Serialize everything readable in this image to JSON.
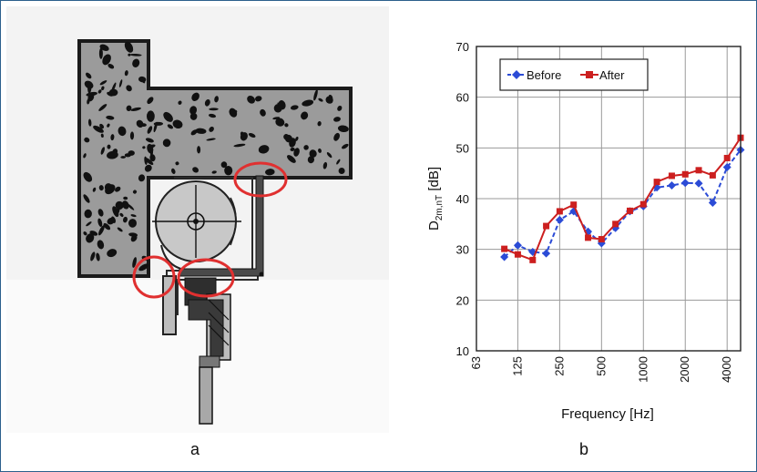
{
  "figure": {
    "label_a": "a",
    "label_b": "b"
  },
  "chart_data": {
    "type": "line",
    "xlabel": "Frequency [Hz]",
    "ylabel_main": "D",
    "ylabel_sub": "2m,nT",
    "ylabel_unit": "[dB]",
    "x_scale": "log",
    "xlim": [
      63,
      5000
    ],
    "ylim": [
      10,
      70
    ],
    "x_ticks": [
      63,
      125,
      250,
      500,
      1000,
      2000,
      4000
    ],
    "y_ticks": [
      10,
      20,
      30,
      40,
      50,
      60,
      70
    ],
    "grid": true,
    "legend_placement": "top-left",
    "x": [
      100,
      125,
      160,
      200,
      250,
      315,
      400,
      500,
      630,
      800,
      1000,
      1250,
      1600,
      2000,
      2500,
      3150,
      4000,
      5000
    ],
    "series": [
      {
        "name": "Before",
        "color": "#2b4bd6",
        "style": "dashed",
        "marker": "diamond",
        "values": [
          28.5,
          30.8,
          29.5,
          29.2,
          35.8,
          37.5,
          33.5,
          31.2,
          34.2,
          37.5,
          38.5,
          42.2,
          42.6,
          43.1,
          43.0,
          39.2,
          46.2,
          49.6
        ]
      },
      {
        "name": "After",
        "color": "#cc1f1f",
        "style": "solid",
        "marker": "square",
        "values": [
          30.1,
          29.0,
          27.9,
          34.6,
          37.5,
          38.8,
          32.3,
          32.0,
          35.0,
          37.6,
          38.9,
          43.3,
          44.5,
          44.8,
          45.6,
          44.6,
          48.0,
          52.0
        ]
      }
    ]
  }
}
